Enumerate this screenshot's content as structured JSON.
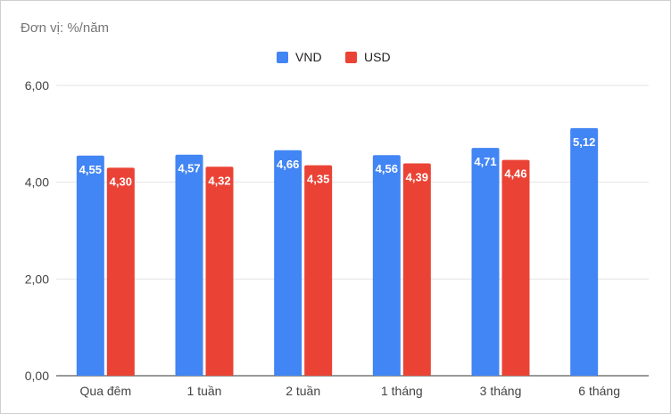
{
  "unit_label": "Đơn vị: %/năm",
  "colors": {
    "vnd": "#4285f4",
    "usd": "#ea4335",
    "grid": "#e3e3e3",
    "axis": "#333333",
    "tick_text": "#444444"
  },
  "chart_data": {
    "type": "bar",
    "categories": [
      "Qua đêm",
      "1 tuần",
      "2 tuần",
      "1 tháng",
      "3 tháng",
      "6 tháng"
    ],
    "series": [
      {
        "name": "VND",
        "values": [
          4.55,
          4.57,
          4.66,
          4.56,
          4.71,
          5.12
        ],
        "labels": [
          "4,55",
          "4,57",
          "4,66",
          "4,56",
          "4,71",
          "5,12"
        ]
      },
      {
        "name": "USD",
        "values": [
          4.3,
          4.32,
          4.35,
          4.39,
          4.46,
          null
        ],
        "labels": [
          "4,30",
          "4,32",
          "4,35",
          "4,39",
          "4,46",
          ""
        ]
      }
    ],
    "ylim": [
      0,
      6
    ],
    "yticks": [
      0,
      2,
      4,
      6
    ],
    "ytick_labels": [
      "0,00",
      "2,00",
      "4,00",
      "6,00"
    ],
    "grid": true,
    "legend_position": "top-center"
  }
}
